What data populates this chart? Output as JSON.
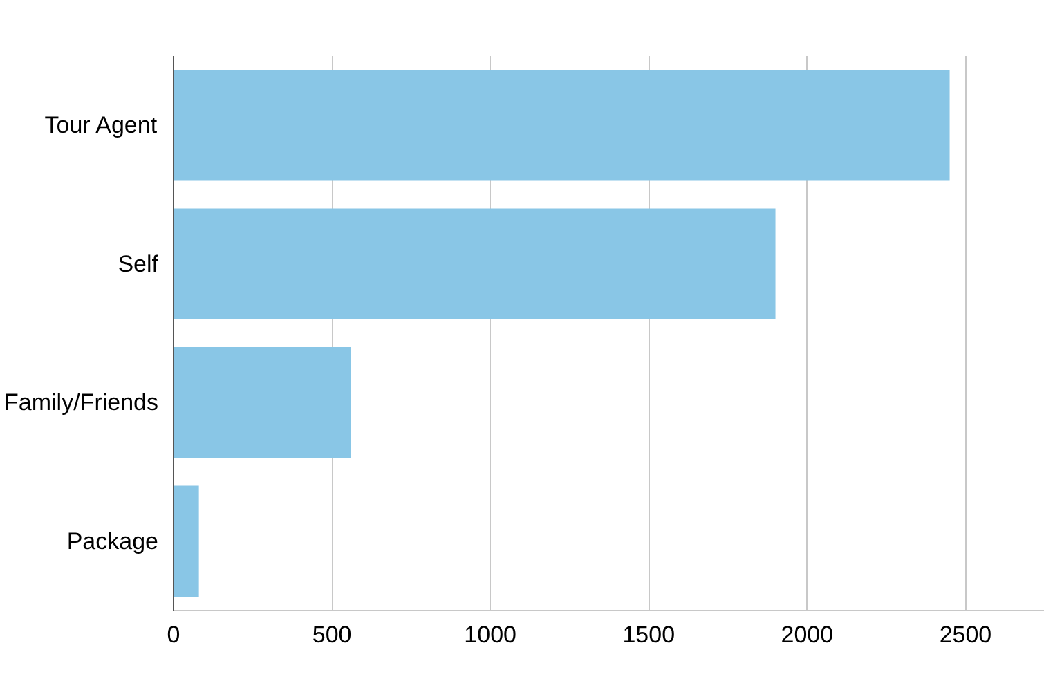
{
  "chart_data": {
    "type": "bar",
    "orientation": "horizontal",
    "categories": [
      "Tour Agent",
      "Self",
      "Family/Friends",
      "Package"
    ],
    "values": [
      2450,
      1900,
      560,
      80
    ],
    "color": "#89c6e6",
    "xlim": [
      0,
      2750
    ],
    "xticks": [
      0,
      500,
      1000,
      1500,
      2000,
      2500
    ],
    "grid": "x"
  }
}
